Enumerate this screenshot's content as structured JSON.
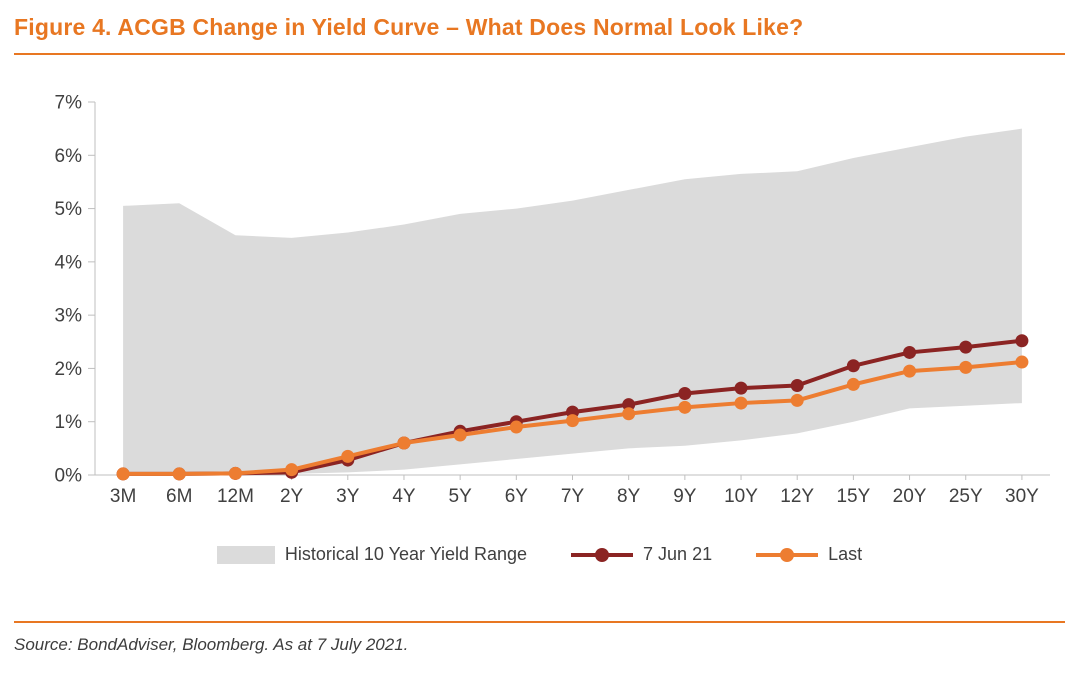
{
  "header": {
    "title": "Figure 4. ACGB Change in Yield Curve – What Does Normal Look Like?"
  },
  "footer": {
    "source": "Source: BondAdviser, Bloomberg. As at 7 July 2021."
  },
  "colors": {
    "accent": "#E87722",
    "axis": "#BFBFBF",
    "text": "#404040"
  },
  "chart_data": {
    "type": "line",
    "title": "",
    "xlabel": "",
    "ylabel": "",
    "ylim": [
      0,
      7
    ],
    "yticks": [
      "0%",
      "1%",
      "2%",
      "3%",
      "4%",
      "5%",
      "6%",
      "7%"
    ],
    "grid": false,
    "legend_position": "bottom",
    "categories": [
      "3M",
      "6M",
      "12M",
      "2Y",
      "3Y",
      "4Y",
      "5Y",
      "6Y",
      "7Y",
      "8Y",
      "9Y",
      "10Y",
      "12Y",
      "15Y",
      "20Y",
      "25Y",
      "30Y"
    ],
    "band": {
      "name": "Historical 10 Year Yield Range",
      "color": "#DBDBDB",
      "upper": [
        5.05,
        5.1,
        4.5,
        4.45,
        4.55,
        4.7,
        4.9,
        5.0,
        5.15,
        5.35,
        5.55,
        5.65,
        5.7,
        5.95,
        6.15,
        6.35,
        6.5
      ],
      "lower": [
        0.02,
        0.02,
        0.02,
        0.02,
        0.05,
        0.1,
        0.2,
        0.3,
        0.4,
        0.5,
        0.55,
        0.65,
        0.78,
        1.0,
        1.25,
        1.3,
        1.35
      ]
    },
    "series": [
      {
        "name": "7 Jun 21",
        "color": "#8B2423",
        "values": [
          0.02,
          0.02,
          0.03,
          0.05,
          0.28,
          0.6,
          0.82,
          1.0,
          1.18,
          1.32,
          1.53,
          1.63,
          1.68,
          2.05,
          2.3,
          2.4,
          2.52
        ]
      },
      {
        "name": "Last",
        "color": "#ED7D31",
        "values": [
          0.02,
          0.02,
          0.03,
          0.1,
          0.35,
          0.6,
          0.75,
          0.9,
          1.02,
          1.15,
          1.27,
          1.35,
          1.4,
          1.7,
          1.95,
          2.02,
          2.12
        ]
      }
    ]
  }
}
